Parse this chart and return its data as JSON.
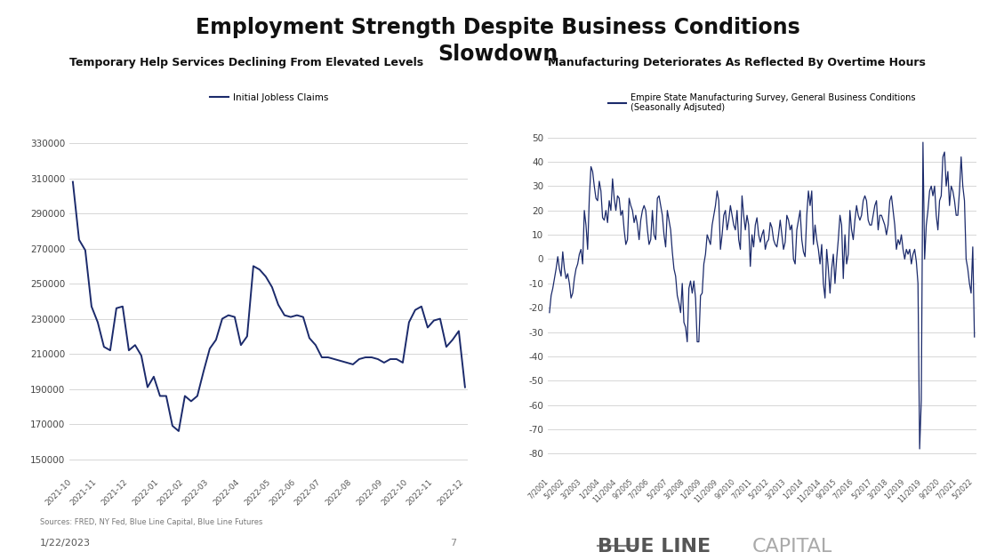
{
  "title": "Employment Strength Despite Business Conditions\nSlowdown",
  "left_subtitle": "Temporary Help Services Declining From Elevated Levels",
  "right_subtitle": "Manufacturing Deteriorates As Reflected By Overtime Hours",
  "left_legend": "Initial Jobless Claims",
  "right_legend_line1": "Empire State Manufacturing Survey, General Business Conditions",
  "right_legend_line2": "(Seasonally Adjsuted)",
  "footer_source": "Sources: FRED, NY Fed, Blue Line Capital, Blue Line Futures",
  "footer_date": "1/22/2023",
  "footer_page": "7",
  "line_color": "#1B2A6B",
  "background_color": "#ffffff",
  "left_yticks": [
    150000,
    170000,
    190000,
    210000,
    230000,
    250000,
    270000,
    290000,
    310000,
    330000
  ],
  "left_ylim": [
    142000,
    343000
  ],
  "left_xticks": [
    "2021-10",
    "2021-11",
    "2021-12",
    "2022-01",
    "2022-02",
    "2022-03",
    "2022-04",
    "2022-05",
    "2022-06",
    "2022-07",
    "2022-08",
    "2022-09",
    "2022-10",
    "2022-11",
    "2022-12"
  ],
  "right_yticks": [
    -80,
    -70,
    -60,
    -50,
    -40,
    -30,
    -20,
    -10,
    0,
    10,
    20,
    30,
    40,
    50
  ],
  "right_ylim": [
    -88,
    57
  ],
  "right_xticks": [
    "7/2001",
    "5/2002",
    "3/2003",
    "1/2004",
    "11/2004",
    "9/2005",
    "7/2006",
    "5/2007",
    "3/2008",
    "1/2009",
    "11/2009",
    "9/2010",
    "7/2011",
    "5/2012",
    "3/2013",
    "1/2014",
    "11/2014",
    "9/2015",
    "7/2016",
    "5/2017",
    "3/2018",
    "1/2019",
    "11/2019",
    "9/2020",
    "7/2021",
    "5/2022"
  ],
  "left_data_y": [
    308000,
    275000,
    269000,
    237000,
    228000,
    214000,
    212000,
    236000,
    237000,
    212000,
    215000,
    209000,
    191000,
    197000,
    186000,
    186000,
    169000,
    166000,
    186000,
    183000,
    186000,
    200000,
    213000,
    218000,
    230000,
    232000,
    231000,
    215000,
    220000,
    260000,
    258000,
    254000,
    248000,
    238000,
    232000,
    231000,
    232000,
    231000,
    219000,
    215000,
    208000,
    208000,
    207000,
    206000,
    205000,
    204000,
    207000,
    208000,
    208000,
    207000,
    205000,
    207000,
    207000,
    205000,
    228000,
    235000,
    237000,
    225000,
    229000,
    230000,
    214000,
    218000,
    223000,
    191000
  ]
}
